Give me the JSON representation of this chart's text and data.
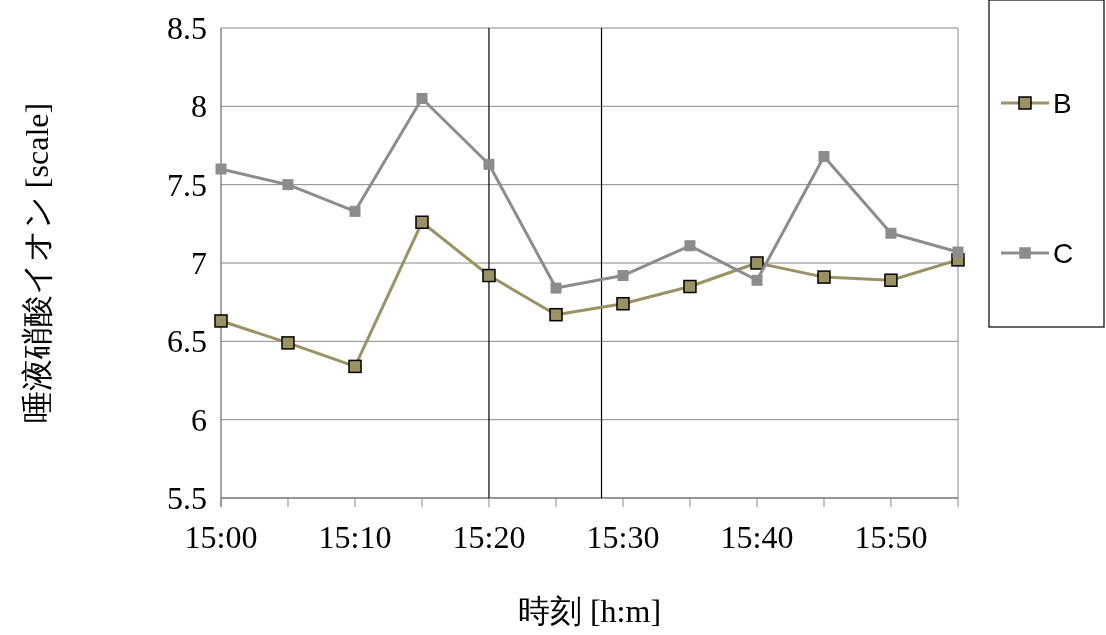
{
  "chart_data": {
    "type": "line",
    "ylabel": "唾液硝酸イオン [scale]",
    "xlabel": "時刻 [h:m]",
    "x": [
      15,
      15.0833,
      15.1667,
      15.25,
      15.3333,
      15.4167,
      15.5,
      15.5833,
      15.6667,
      15.75,
      15.8333,
      15.9167
    ],
    "series": [
      {
        "name": "B",
        "color": "#9a9263",
        "values": [
          6.63,
          6.49,
          6.34,
          7.26,
          6.92,
          6.67,
          6.74,
          6.85,
          7.0,
          6.91,
          6.89,
          7.02
        ]
      },
      {
        "name": "C",
        "color": "#8c8c8c",
        "values": [
          7.6,
          7.5,
          7.33,
          8.05,
          7.63,
          6.84,
          6.92,
          7.11,
          6.89,
          7.68,
          7.19,
          7.07
        ]
      }
    ],
    "xlim": [
      15,
      15.9167
    ],
    "xticks": [
      {
        "value": 15,
        "label": "15:00"
      },
      {
        "value": 15.0833,
        "label": null
      },
      {
        "value": 15.1667,
        "label": "15:10"
      },
      {
        "value": 15.25,
        "label": null
      },
      {
        "value": 15.3333,
        "label": "15:20"
      },
      {
        "value": 15.4167,
        "label": null
      },
      {
        "value": 15.5,
        "label": "15:30"
      },
      {
        "value": 15.5833,
        "label": null
      },
      {
        "value": 15.6667,
        "label": "15:40"
      },
      {
        "value": 15.75,
        "label": null
      },
      {
        "value": 15.8333,
        "label": "15:50"
      },
      {
        "value": 15.9167,
        "label": null
      }
    ],
    "ylim": [
      5.5,
      8.5
    ],
    "yticks": [
      5.5,
      6,
      6.5,
      7,
      7.5,
      8,
      8.5
    ],
    "ref_lines": [
      {
        "axis": "x",
        "value": 15.3333,
        "color": "#000000"
      },
      {
        "axis": "x",
        "value": 15.4733,
        "color": "#000000"
      }
    ],
    "grid": "y",
    "legend": "right",
    "marker": "square",
    "line_style": "solid"
  }
}
